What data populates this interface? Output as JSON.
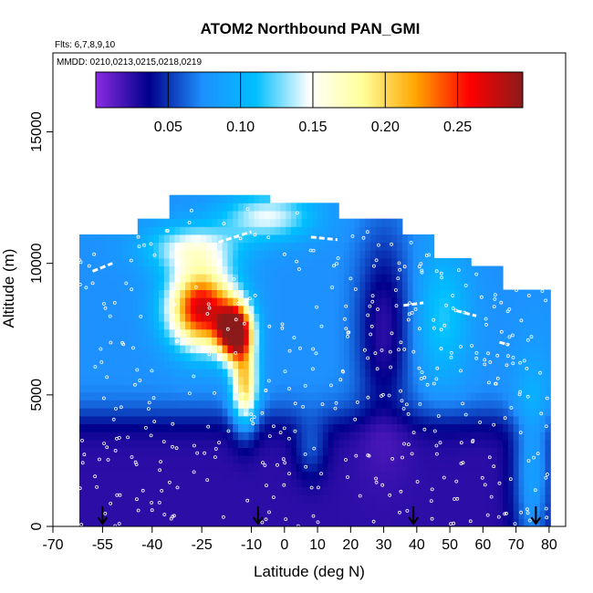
{
  "chart_data": {
    "type": "heatmap",
    "title": "ATOM2 Northbound PAN_GMI",
    "flights_note": "Flts: 6,7,8,9,10",
    "dates_note": "MMDD: 0210,0213,0215,0218,0219",
    "xlabel": "Latitude (deg N)",
    "ylabel": "Altitude (m)",
    "xlim": [
      -70,
      85
    ],
    "ylim": [
      0,
      18000
    ],
    "x_ticks": [
      -70,
      -55,
      -40,
      -25,
      -10,
      0,
      10,
      20,
      30,
      40,
      50,
      60,
      70,
      80
    ],
    "y_ticks": [
      0,
      5000,
      10000,
      15000
    ],
    "colorbar": {
      "range": [
        0,
        0.295
      ],
      "ticks": [
        0.05,
        0.1,
        0.15,
        0.2,
        0.25
      ],
      "tick_labels": [
        "0.05",
        "0.10",
        "0.15",
        "0.20",
        "0.25"
      ],
      "colors": [
        "#8a2be2",
        "#00008b",
        "#1e90ff",
        "#00bfff",
        "#ffffff",
        "#ffff99",
        "#ffa500",
        "#ff0000",
        "#8b1a1a"
      ]
    },
    "flight_path_markers_lat": [
      -55,
      -8,
      39,
      76
    ],
    "grid": false,
    "legend": "none"
  }
}
